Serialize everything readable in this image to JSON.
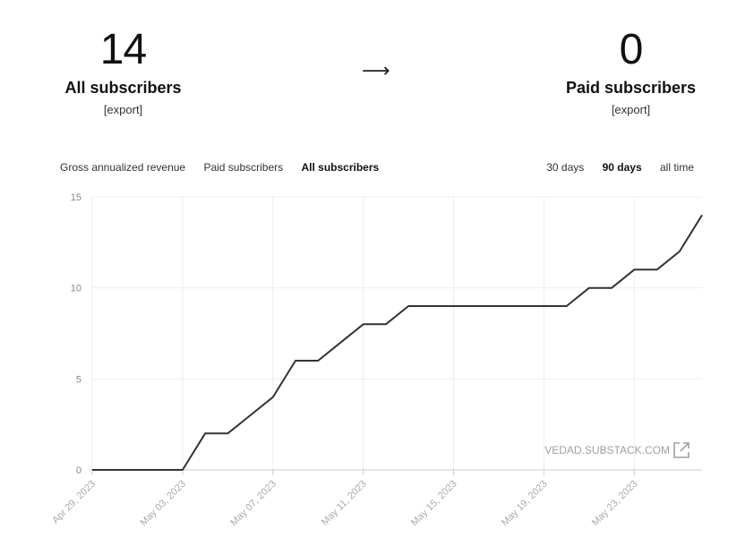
{
  "summary": {
    "left": {
      "number": "14",
      "label": "All subscribers",
      "export": "[export]"
    },
    "arrow": "⟶",
    "right": {
      "number": "0",
      "label": "Paid subscribers",
      "export": "[export]"
    }
  },
  "metric_tabs": [
    {
      "label": "Gross annualized revenue",
      "active": false
    },
    {
      "label": "Paid subscribers",
      "active": false
    },
    {
      "label": "All subscribers",
      "active": true
    }
  ],
  "range_tabs": [
    {
      "label": "30 days",
      "active": false
    },
    {
      "label": "90 days",
      "active": true
    },
    {
      "label": "all time",
      "active": false
    }
  ],
  "watermark": "VEDAD.SUBSTACK.COM",
  "colors": {
    "line": "#333333",
    "grid": "#eeeeee",
    "axis_text": "#888888",
    "tick_label": "#aaaaaa"
  },
  "chart_data": {
    "type": "line",
    "title": "",
    "xlabel": "",
    "ylabel": "",
    "ylim": [
      0,
      15
    ],
    "yticks": [
      0,
      5,
      10,
      15
    ],
    "xlim": [
      "2023-04-29",
      "2023-05-26"
    ],
    "xticks": [
      "Apr 29, 2023",
      "May 03, 2023",
      "May 07, 2023",
      "May 11, 2023",
      "May 15, 2023",
      "May 19, 2023",
      "May 23, 2023"
    ],
    "grid": true,
    "series": [
      {
        "points": [
          [
            "2023-04-29",
            0
          ],
          [
            "2023-04-30",
            0
          ],
          [
            "2023-05-01",
            0
          ],
          [
            "2023-05-02",
            0
          ],
          [
            "2023-05-03",
            0
          ],
          [
            "2023-05-04",
            2
          ],
          [
            "2023-05-05",
            2
          ],
          [
            "2023-05-06",
            3
          ],
          [
            "2023-05-07",
            4
          ],
          [
            "2023-05-08",
            6
          ],
          [
            "2023-05-09",
            6
          ],
          [
            "2023-05-10",
            7
          ],
          [
            "2023-05-11",
            8
          ],
          [
            "2023-05-12",
            8
          ],
          [
            "2023-05-13",
            9
          ],
          [
            "2023-05-14",
            9
          ],
          [
            "2023-05-15",
            9
          ],
          [
            "2023-05-16",
            9
          ],
          [
            "2023-05-17",
            9
          ],
          [
            "2023-05-18",
            9
          ],
          [
            "2023-05-19",
            9
          ],
          [
            "2023-05-20",
            9
          ],
          [
            "2023-05-21",
            10
          ],
          [
            "2023-05-22",
            10
          ],
          [
            "2023-05-23",
            11
          ],
          [
            "2023-05-24",
            11
          ],
          [
            "2023-05-25",
            12
          ],
          [
            "2023-05-26",
            14
          ]
        ]
      }
    ]
  }
}
